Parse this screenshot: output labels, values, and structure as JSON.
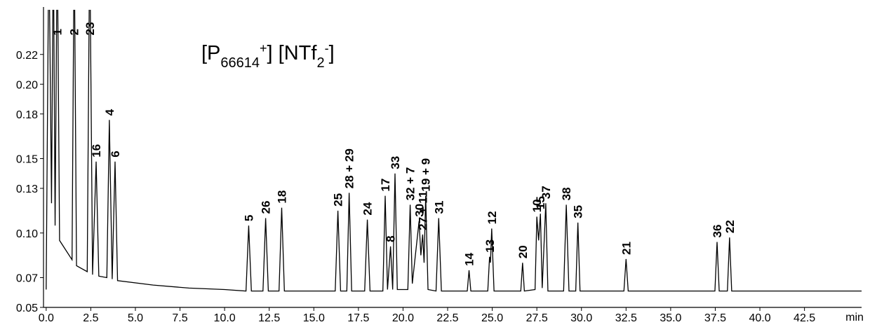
{
  "chart_data": {
    "type": "line",
    "title": [
      {
        "text": "[P"
      },
      {
        "text": "66614",
        "shift": "sub"
      },
      {
        "text": "+",
        "shift": "super"
      },
      {
        "text": "] [NTf"
      },
      {
        "text": "2",
        "shift": "sub"
      },
      {
        "text": "-",
        "shift": "super"
      },
      {
        "text": "]"
      }
    ],
    "x_label": "min",
    "xlim": [
      -0.15,
      45.7
    ],
    "ylim": [
      0.05,
      0.25
    ],
    "xticks": [
      {
        "value": 0,
        "label": "0.0"
      },
      2.5,
      {
        "value": 5,
        "label": "5.0"
      },
      7.5,
      {
        "value": 10,
        "label": "10.0"
      },
      12.5,
      {
        "value": 15,
        "label": "15.0"
      },
      17.5,
      {
        "value": 20,
        "label": "20.0"
      },
      22.5,
      {
        "value": 25,
        "label": "25.0"
      },
      27.5,
      {
        "value": 30,
        "label": "30.0"
      },
      32.5,
      {
        "value": 35,
        "label": "35.0"
      },
      37.5,
      {
        "value": 40,
        "label": "40.0"
      },
      42.5
    ],
    "yticks": [
      0.05,
      0.07,
      {
        "value": 0.1,
        "label": "0.10"
      },
      0.13,
      0.15,
      0.18,
      {
        "value": 0.2,
        "label": "0.20"
      },
      0.22
    ],
    "x": [
      0.0,
      0.15,
      0.3,
      0.4,
      0.5,
      0.62,
      0.75,
      1.45,
      1.57,
      1.7,
      2.3,
      2.44,
      2.6,
      2.8,
      2.95,
      3.4,
      3.54,
      3.7,
      3.86,
      4.0,
      6.0,
      8.0,
      10.0,
      11.2,
      11.35,
      11.5,
      12.15,
      12.3,
      12.45,
      13.05,
      13.2,
      13.35,
      16.2,
      16.35,
      16.5,
      16.85,
      16.98,
      17.12,
      17.85,
      18.0,
      18.15,
      18.87,
      19.0,
      19.13,
      19.3,
      19.42,
      19.55,
      19.68,
      20.27,
      20.4,
      20.52,
      20.9,
      21.0,
      21.1,
      21.18,
      21.27,
      21.4,
      21.85,
      22.0,
      22.15,
      23.6,
      23.7,
      23.8,
      24.75,
      24.85,
      24.9,
      24.97,
      25.1,
      26.6,
      26.7,
      26.8,
      27.4,
      27.5,
      27.6,
      27.7,
      27.8,
      28.0,
      28.12,
      29.0,
      29.15,
      29.3,
      29.68,
      29.8,
      29.92,
      32.38,
      32.5,
      32.62,
      37.48,
      37.6,
      37.72,
      38.18,
      38.3,
      38.42,
      45.7
    ],
    "series": [
      {
        "color": "#000000",
        "values": [
          0.062,
          0.3,
          0.12,
          0.3,
          0.105,
          0.3,
          0.095,
          0.082,
          0.3,
          0.078,
          0.074,
          0.3,
          0.072,
          0.148,
          0.071,
          0.07,
          0.176,
          0.069,
          0.148,
          0.068,
          0.065,
          0.063,
          0.062,
          0.061,
          0.105,
          0.061,
          0.061,
          0.11,
          0.061,
          0.061,
          0.117,
          0.061,
          0.061,
          0.115,
          0.061,
          0.061,
          0.127,
          0.061,
          0.061,
          0.109,
          0.061,
          0.061,
          0.125,
          0.062,
          0.091,
          0.062,
          0.14,
          0.062,
          0.062,
          0.119,
          0.066,
          0.108,
          0.085,
          0.099,
          0.08,
          0.125,
          0.062,
          0.061,
          0.11,
          0.061,
          0.061,
          0.075,
          0.061,
          0.061,
          0.084,
          0.08,
          0.103,
          0.061,
          0.061,
          0.08,
          0.061,
          0.062,
          0.111,
          0.095,
          0.113,
          0.063,
          0.12,
          0.061,
          0.061,
          0.119,
          0.061,
          0.061,
          0.107,
          0.061,
          0.061,
          0.0825,
          0.061,
          0.061,
          0.094,
          0.061,
          0.061,
          0.097,
          0.061,
          0.061
        ]
      }
    ],
    "peaks": [
      {
        "label": "1",
        "x": 0.62,
        "y": 0.3
      },
      {
        "label": "2",
        "x": 1.57,
        "y": 0.3
      },
      {
        "label": "23",
        "x": 2.44,
        "y": 0.3
      },
      {
        "label": "16",
        "x": 2.8,
        "y": 0.148
      },
      {
        "label": "4",
        "x": 3.54,
        "y": 0.176
      },
      {
        "label": "6",
        "x": 3.86,
        "y": 0.148
      },
      {
        "label": "5",
        "x": 11.35,
        "y": 0.105
      },
      {
        "label": "26",
        "x": 12.3,
        "y": 0.11
      },
      {
        "label": "18",
        "x": 13.2,
        "y": 0.117
      },
      {
        "label": "25",
        "x": 16.35,
        "y": 0.115
      },
      {
        "label": "28 + 29",
        "x": 16.98,
        "y": 0.127
      },
      {
        "label": "24",
        "x": 18.0,
        "y": 0.109
      },
      {
        "label": "17",
        "x": 19.0,
        "y": 0.125
      },
      {
        "label": "8",
        "x": 19.3,
        "y": 0.091
      },
      {
        "label": "33",
        "x": 19.55,
        "y": 0.14
      },
      {
        "label": "32 + 7",
        "x": 20.4,
        "y": 0.119
      },
      {
        "label": "30",
        "x": 20.9,
        "y": 0.108
      },
      {
        "label": "27 + 11",
        "x": 21.1,
        "y": 0.099
      },
      {
        "label": "19 + 9",
        "x": 21.27,
        "y": 0.125
      },
      {
        "label": "31",
        "x": 22.0,
        "y": 0.11
      },
      {
        "label": "14",
        "x": 23.7,
        "y": 0.075
      },
      {
        "label": "13",
        "x": 24.85,
        "y": 0.084
      },
      {
        "label": "12",
        "x": 24.97,
        "y": 0.103
      },
      {
        "label": "20",
        "x": 26.7,
        "y": 0.08
      },
      {
        "label": "10",
        "x": 27.5,
        "y": 0.111
      },
      {
        "label": "15",
        "x": 27.7,
        "y": 0.113
      },
      {
        "label": "37",
        "x": 28.0,
        "y": 0.12
      },
      {
        "label": "38",
        "x": 29.15,
        "y": 0.119
      },
      {
        "label": "35",
        "x": 29.8,
        "y": 0.107
      },
      {
        "label": "21",
        "x": 32.5,
        "y": 0.0825
      },
      {
        "label": "36",
        "x": 37.6,
        "y": 0.094
      },
      {
        "label": "22",
        "x": 38.3,
        "y": 0.097
      }
    ]
  }
}
